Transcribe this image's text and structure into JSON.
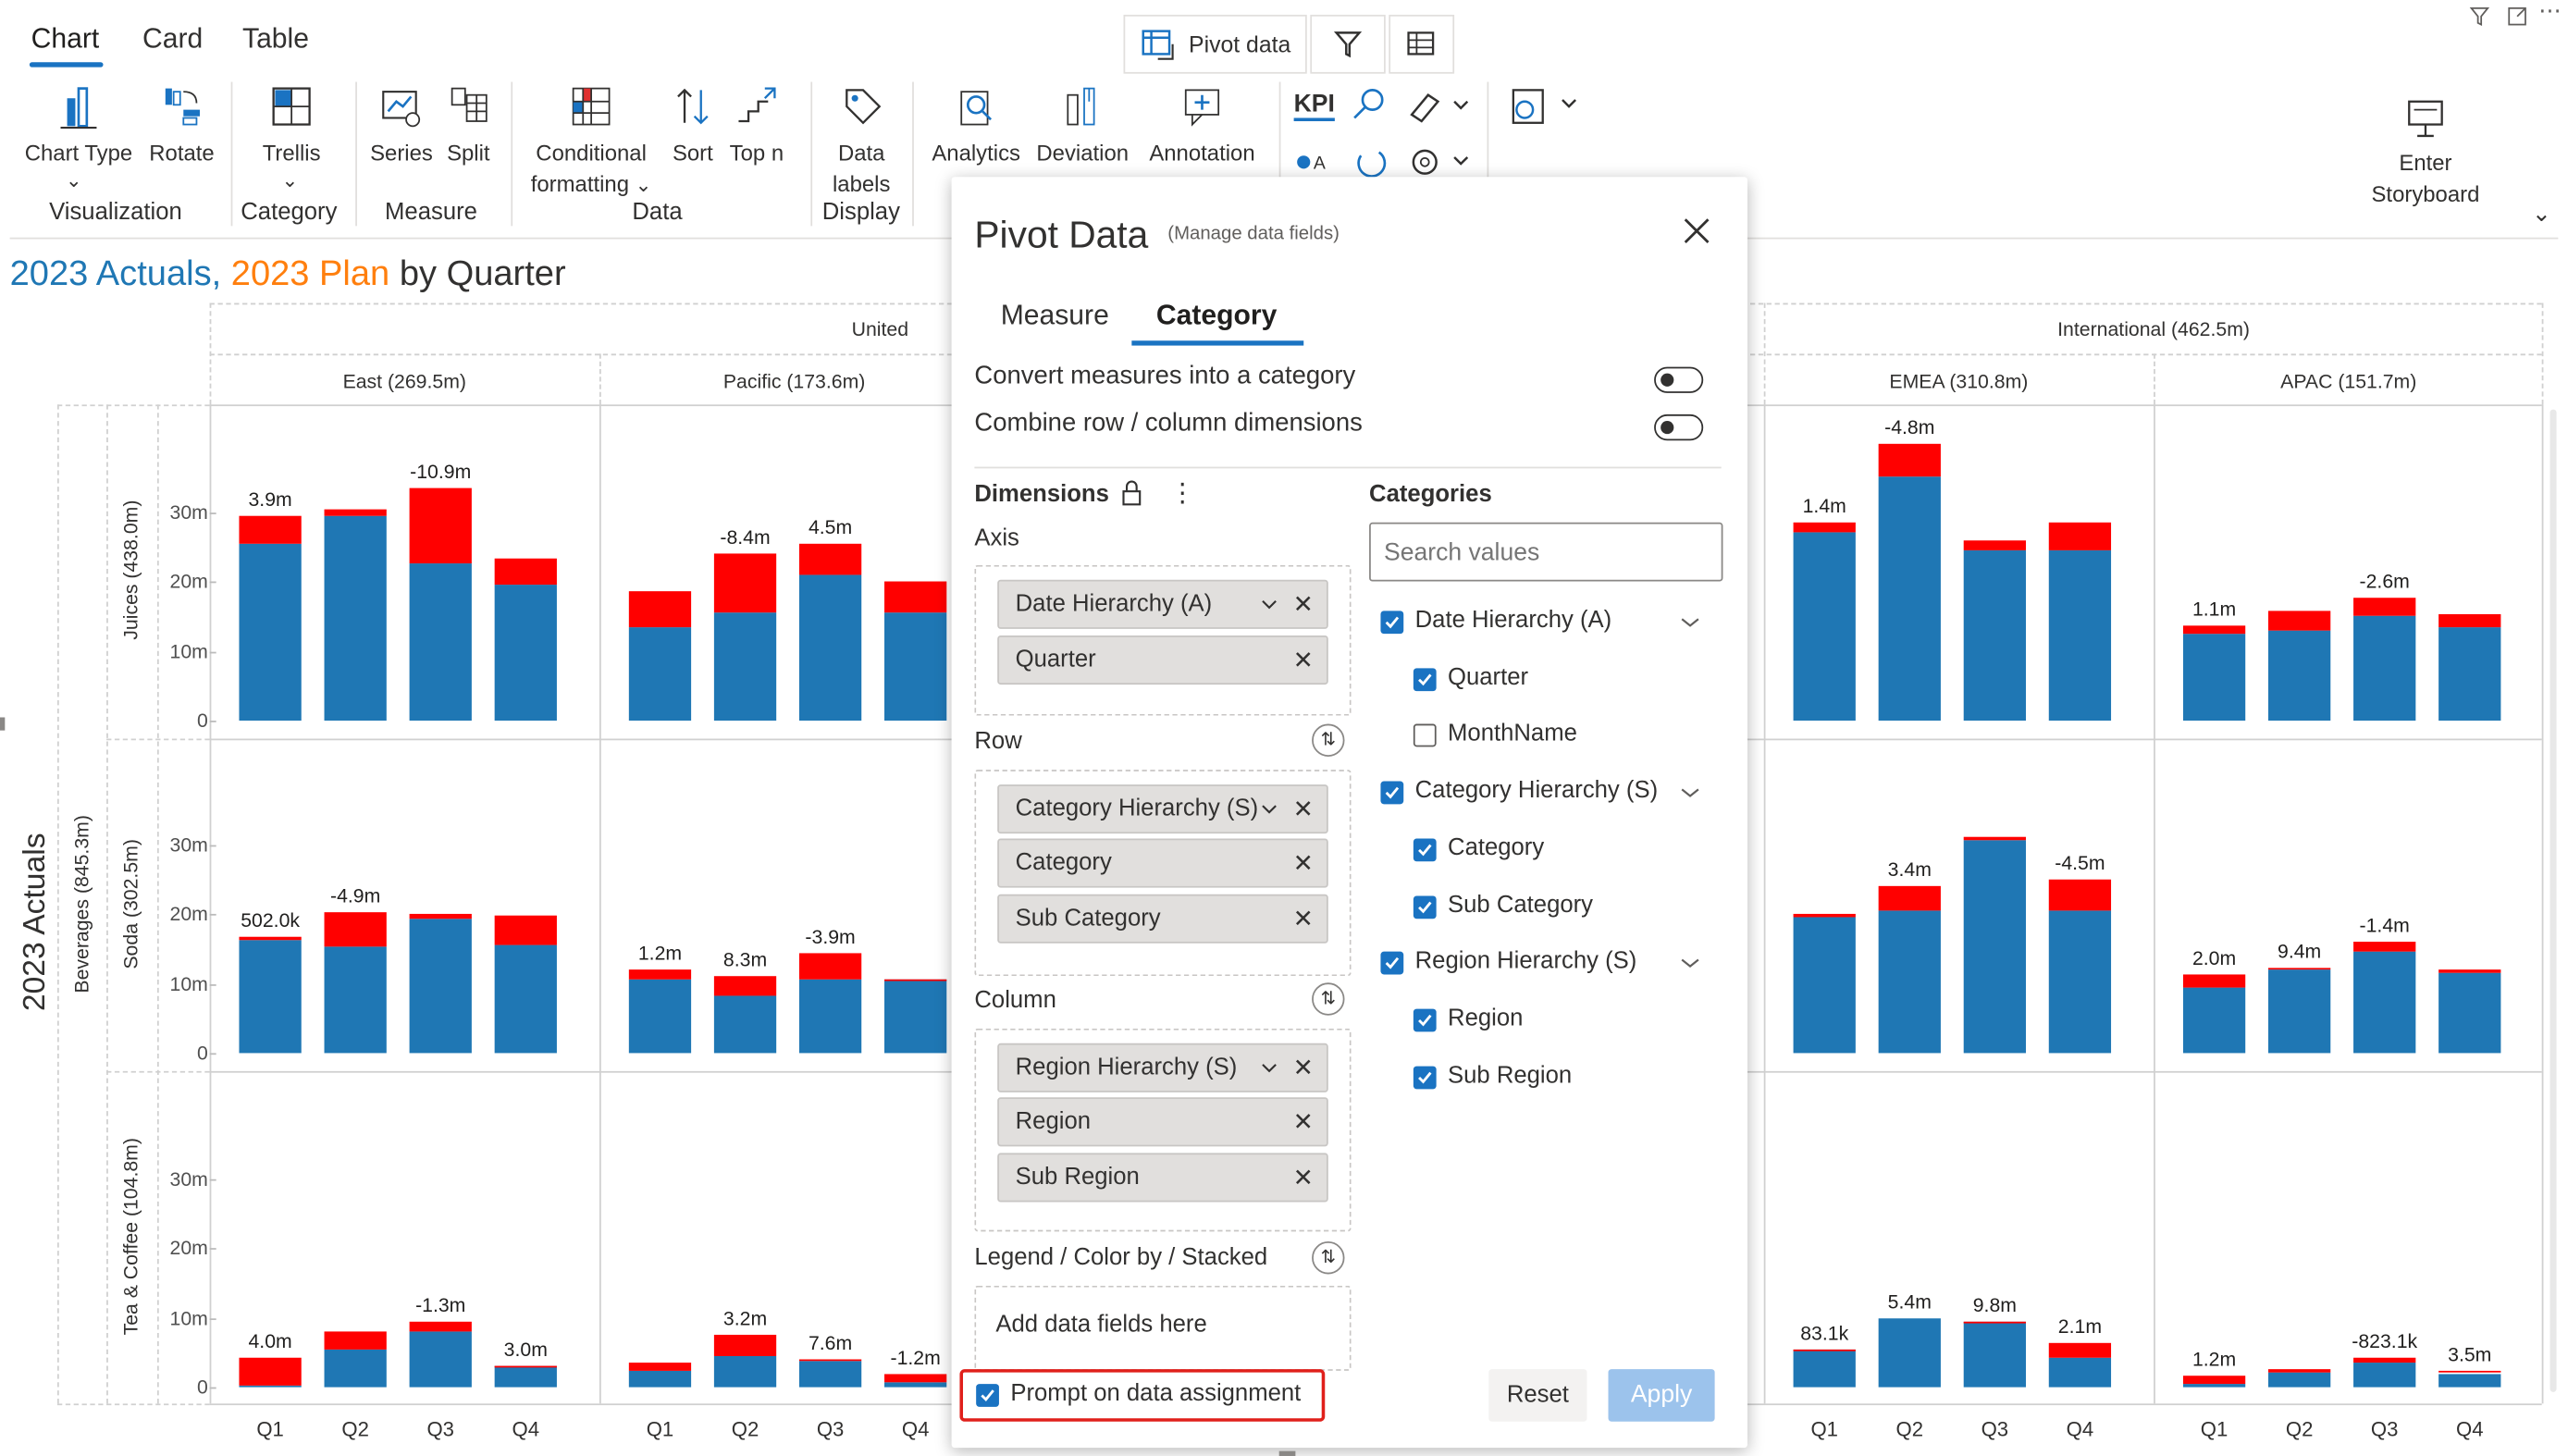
{
  "ribbon": {
    "tabs": [
      "Chart",
      "Card",
      "Table"
    ],
    "pivot_button": "Pivot data",
    "buttons": {
      "chart_type": "Chart Type",
      "rotate": "Rotate",
      "trellis": "Trellis",
      "series": "Series",
      "split": "Split",
      "conditional_1": "Conditional",
      "conditional_2": "formatting",
      "sort": "Sort",
      "topn": "Top n",
      "datalabels_1": "Data",
      "datalabels_2": "labels",
      "analytics": "Analytics",
      "deviation": "Deviation",
      "annotation": "Annotation",
      "kpi": "KPI",
      "storyboard_1": "Enter",
      "storyboard_2": "Storyboard"
    },
    "groups": {
      "visualization": "Visualization",
      "category": "Category",
      "measure": "Measure",
      "data": "Data",
      "display": "Display"
    }
  },
  "chart": {
    "title_part1": "2023 Actuals",
    "title_sep": ",",
    "title_part2": "2023 Plan",
    "title_part3": "by Quarter",
    "colors": {
      "actual": "#1f77b4",
      "plan": "#ff7f0e",
      "positive": "#7fba00",
      "negative": "#ff0000"
    },
    "col_groups": [
      "United",
      "International (462.5m)"
    ],
    "columns": [
      "East (269.5m)",
      "Pacific (173.6m)",
      "EMEA (310.8m)",
      "APAC (151.7m)"
    ],
    "row_group": "Beverages (845.3m)",
    "row_measure": "2023 Actuals",
    "rows": [
      "Juices (438.0m)",
      "Soda (302.5m)",
      "Tea & Coffee (104.8m)"
    ],
    "y_ticks": [
      "0",
      "10m",
      "20m",
      "30m"
    ],
    "x_ticks": [
      "Q1",
      "Q2",
      "Q3",
      "Q4"
    ]
  },
  "chart_data": {
    "type": "bar",
    "title": "2023 Actuals, 2023 Plan by Quarter",
    "categories": [
      "Q1",
      "Q2",
      "Q3",
      "Q4"
    ],
    "ylim": [
      0,
      30
    ],
    "y_unit": "m",
    "panels": [
      {
        "row": "Juices (438.0m)",
        "col": "East (269.5m)",
        "actual": [
          25.5,
          29.5,
          22.5,
          19.5
        ],
        "plan": [
          29.4,
          30.3,
          33.4,
          23.3
        ],
        "labels": [
          "3.9m",
          "",
          "-10.9m",
          ""
        ]
      },
      {
        "row": "Juices (438.0m)",
        "col": "Pacific (173.6m)",
        "actual": [
          13.5,
          15.5,
          21.0,
          15.5
        ],
        "plan": [
          18.5,
          23.9,
          25.5,
          20.0
        ],
        "labels": [
          "",
          "-8.4m",
          "4.5m",
          ""
        ]
      },
      {
        "row": "Juices (438.0m)",
        "col": "EMEA (310.8m)",
        "actual": [
          27.0,
          35.0,
          24.5,
          24.5
        ],
        "plan": [
          28.4,
          39.8,
          26.0,
          28.5
        ],
        "labels": [
          "1.4m",
          "-4.8m",
          "",
          ""
        ]
      },
      {
        "row": "Juices (438.0m)",
        "col": "APAC (151.7m)",
        "actual": [
          12.5,
          13.0,
          15.0,
          13.5
        ],
        "plan": [
          13.6,
          15.8,
          17.6,
          15.4
        ],
        "labels": [
          "1.1m",
          "",
          "-2.6m",
          ""
        ]
      },
      {
        "row": "Soda (302.5m)",
        "col": "East (269.5m)",
        "actual": [
          16.2,
          15.3,
          19.4,
          15.5
        ],
        "plan": [
          16.7,
          20.2,
          20.0,
          19.7
        ],
        "labels": [
          "502.0k",
          "-4.9m",
          "",
          ""
        ]
      },
      {
        "row": "Soda (302.5m)",
        "col": "Pacific (173.6m)",
        "actual": [
          10.7,
          8.3,
          10.5,
          10.5
        ],
        "plan": [
          11.9,
          11.0,
          14.4,
          10.6
        ],
        "labels": [
          "1.2m",
          "8.3m",
          "-3.9m",
          ""
        ]
      },
      {
        "row": "Soda (302.5m)",
        "col": "EMEA (310.8m)",
        "actual": [
          19.5,
          20.5,
          30.5,
          20.5
        ],
        "plan": [
          19.9,
          23.9,
          31.0,
          25.0
        ],
        "labels": [
          "",
          "3.4m",
          "",
          "-4.5m"
        ]
      },
      {
        "row": "Soda (302.5m)",
        "col": "APAC (151.7m)",
        "actual": [
          9.4,
          12.0,
          14.5,
          11.5
        ],
        "plan": [
          11.4,
          12.3,
          15.9,
          11.9
        ],
        "labels": [
          "2.0m",
          "9.4m",
          "-1.4m",
          ""
        ]
      },
      {
        "row": "Tea & Coffee (104.8m)",
        "col": "East (269.5m)",
        "actual": [
          0.2,
          5.5,
          8.0,
          3.0
        ],
        "plan": [
          4.2,
          8.0,
          9.3,
          3.1
        ],
        "labels": [
          "4.0m",
          "",
          "-1.3m",
          "3.0m"
        ]
      },
      {
        "row": "Tea & Coffee (104.8m)",
        "col": "Pacific (173.6m)",
        "actual": [
          2.3,
          4.4,
          3.8,
          0.7
        ],
        "plan": [
          3.5,
          7.6,
          4.0,
          1.9
        ],
        "labels": [
          "",
          "3.2m",
          "7.6m",
          "-1.2m"
        ]
      },
      {
        "row": "Tea & Coffee (104.8m)",
        "col": "EMEA (310.8m)",
        "actual": [
          5.4,
          9.8,
          9.3,
          4.3
        ],
        "plan": [
          5.5,
          9.8,
          9.5,
          6.4
        ],
        "labels": [
          "83.1k",
          "5.4m",
          "9.8m",
          "2.1m"
        ]
      },
      {
        "row": "Tea & Coffee (104.8m)",
        "col": "APAC (151.7m)",
        "actual": [
          0.4,
          2.2,
          3.5,
          2.0
        ],
        "plan": [
          1.6,
          2.5,
          4.3,
          2.4
        ],
        "labels": [
          "1.2m",
          "",
          "-823.1k",
          "3.5m"
        ]
      }
    ]
  },
  "dialog": {
    "title": "Pivot Data",
    "subtitle": "(Manage data fields)",
    "tabs": [
      "Measure",
      "Category"
    ],
    "toggle1": "Convert measures into a category",
    "toggle2": "Combine row / column dimensions",
    "dimensions": "Dimensions",
    "categories_heading": "Categories",
    "search_placeholder": "Search values",
    "axis_label": "Axis",
    "row_label": "Row",
    "column_label": "Column",
    "legend_label": "Legend / Color by / Stacked",
    "add_fields": "Add data fields here",
    "axis_chips": [
      "Date Hierarchy (A)",
      "Quarter"
    ],
    "row_chips": [
      "Category Hierarchy (S)",
      "Category",
      "Sub Category"
    ],
    "column_chips": [
      "Region Hierarchy (S)",
      "Region",
      "Sub Region"
    ],
    "tree": [
      {
        "label": "Date Hierarchy (A)",
        "checked": true
      },
      {
        "label": "Quarter",
        "checked": true
      },
      {
        "label": "MonthName",
        "checked": false
      },
      {
        "label": "Category Hierarchy (S)",
        "checked": true
      },
      {
        "label": "Category",
        "checked": true
      },
      {
        "label": "Sub Category",
        "checked": true
      },
      {
        "label": "Region Hierarchy (S)",
        "checked": true
      },
      {
        "label": "Region",
        "checked": true
      },
      {
        "label": "Sub Region",
        "checked": true
      }
    ],
    "prompt": "Prompt on data assignment",
    "reset": "Reset",
    "apply": "Apply"
  }
}
